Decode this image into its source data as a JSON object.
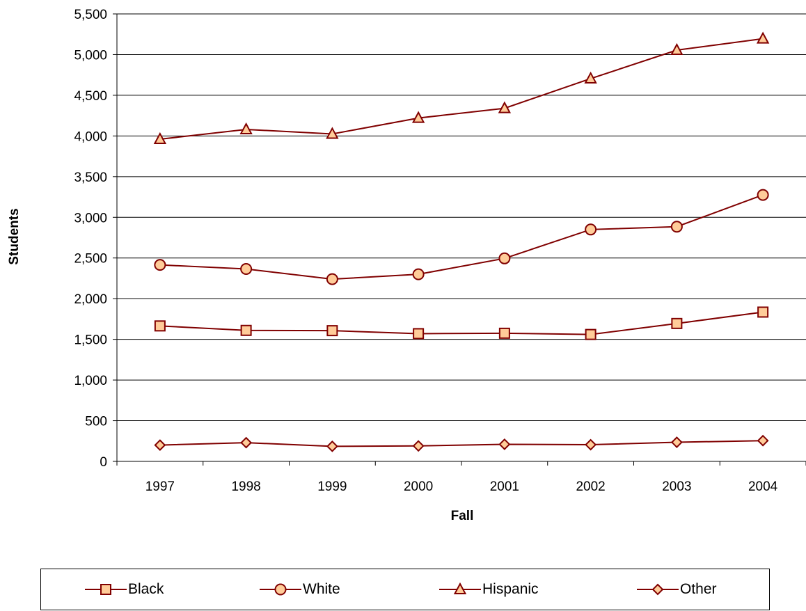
{
  "chart_data": {
    "type": "line",
    "categories": [
      "1997",
      "1998",
      "1999",
      "2000",
      "2001",
      "2002",
      "2003",
      "2004"
    ],
    "series": [
      {
        "name": "Black",
        "marker": "square",
        "values": [
          1665,
          1610,
          1607,
          1570,
          1575,
          1560,
          1695,
          1835
        ]
      },
      {
        "name": "White",
        "marker": "circle",
        "values": [
          2415,
          2365,
          2240,
          2300,
          2495,
          2850,
          2885,
          3275
        ]
      },
      {
        "name": "Hispanic",
        "marker": "triangle",
        "values": [
          3960,
          4080,
          4025,
          4220,
          4340,
          4705,
          5055,
          5195
        ]
      },
      {
        "name": "Other",
        "marker": "diamond",
        "values": [
          200,
          230,
          185,
          190,
          210,
          205,
          235,
          255
        ]
      }
    ],
    "yticks": [
      "0",
      "500",
      "1,000",
      "1,500",
      "2,000",
      "2,500",
      "3,000",
      "3,500",
      "4,000",
      "4,500",
      "5,000",
      "5,500"
    ],
    "xlabel": "Fall",
    "ylabel": "Students",
    "ylim": [
      0,
      5500
    ],
    "grid": "horizontal",
    "legend_position": "bottom",
    "colors": {
      "line": "#800000",
      "marker_fill": "#ffcc99"
    }
  }
}
